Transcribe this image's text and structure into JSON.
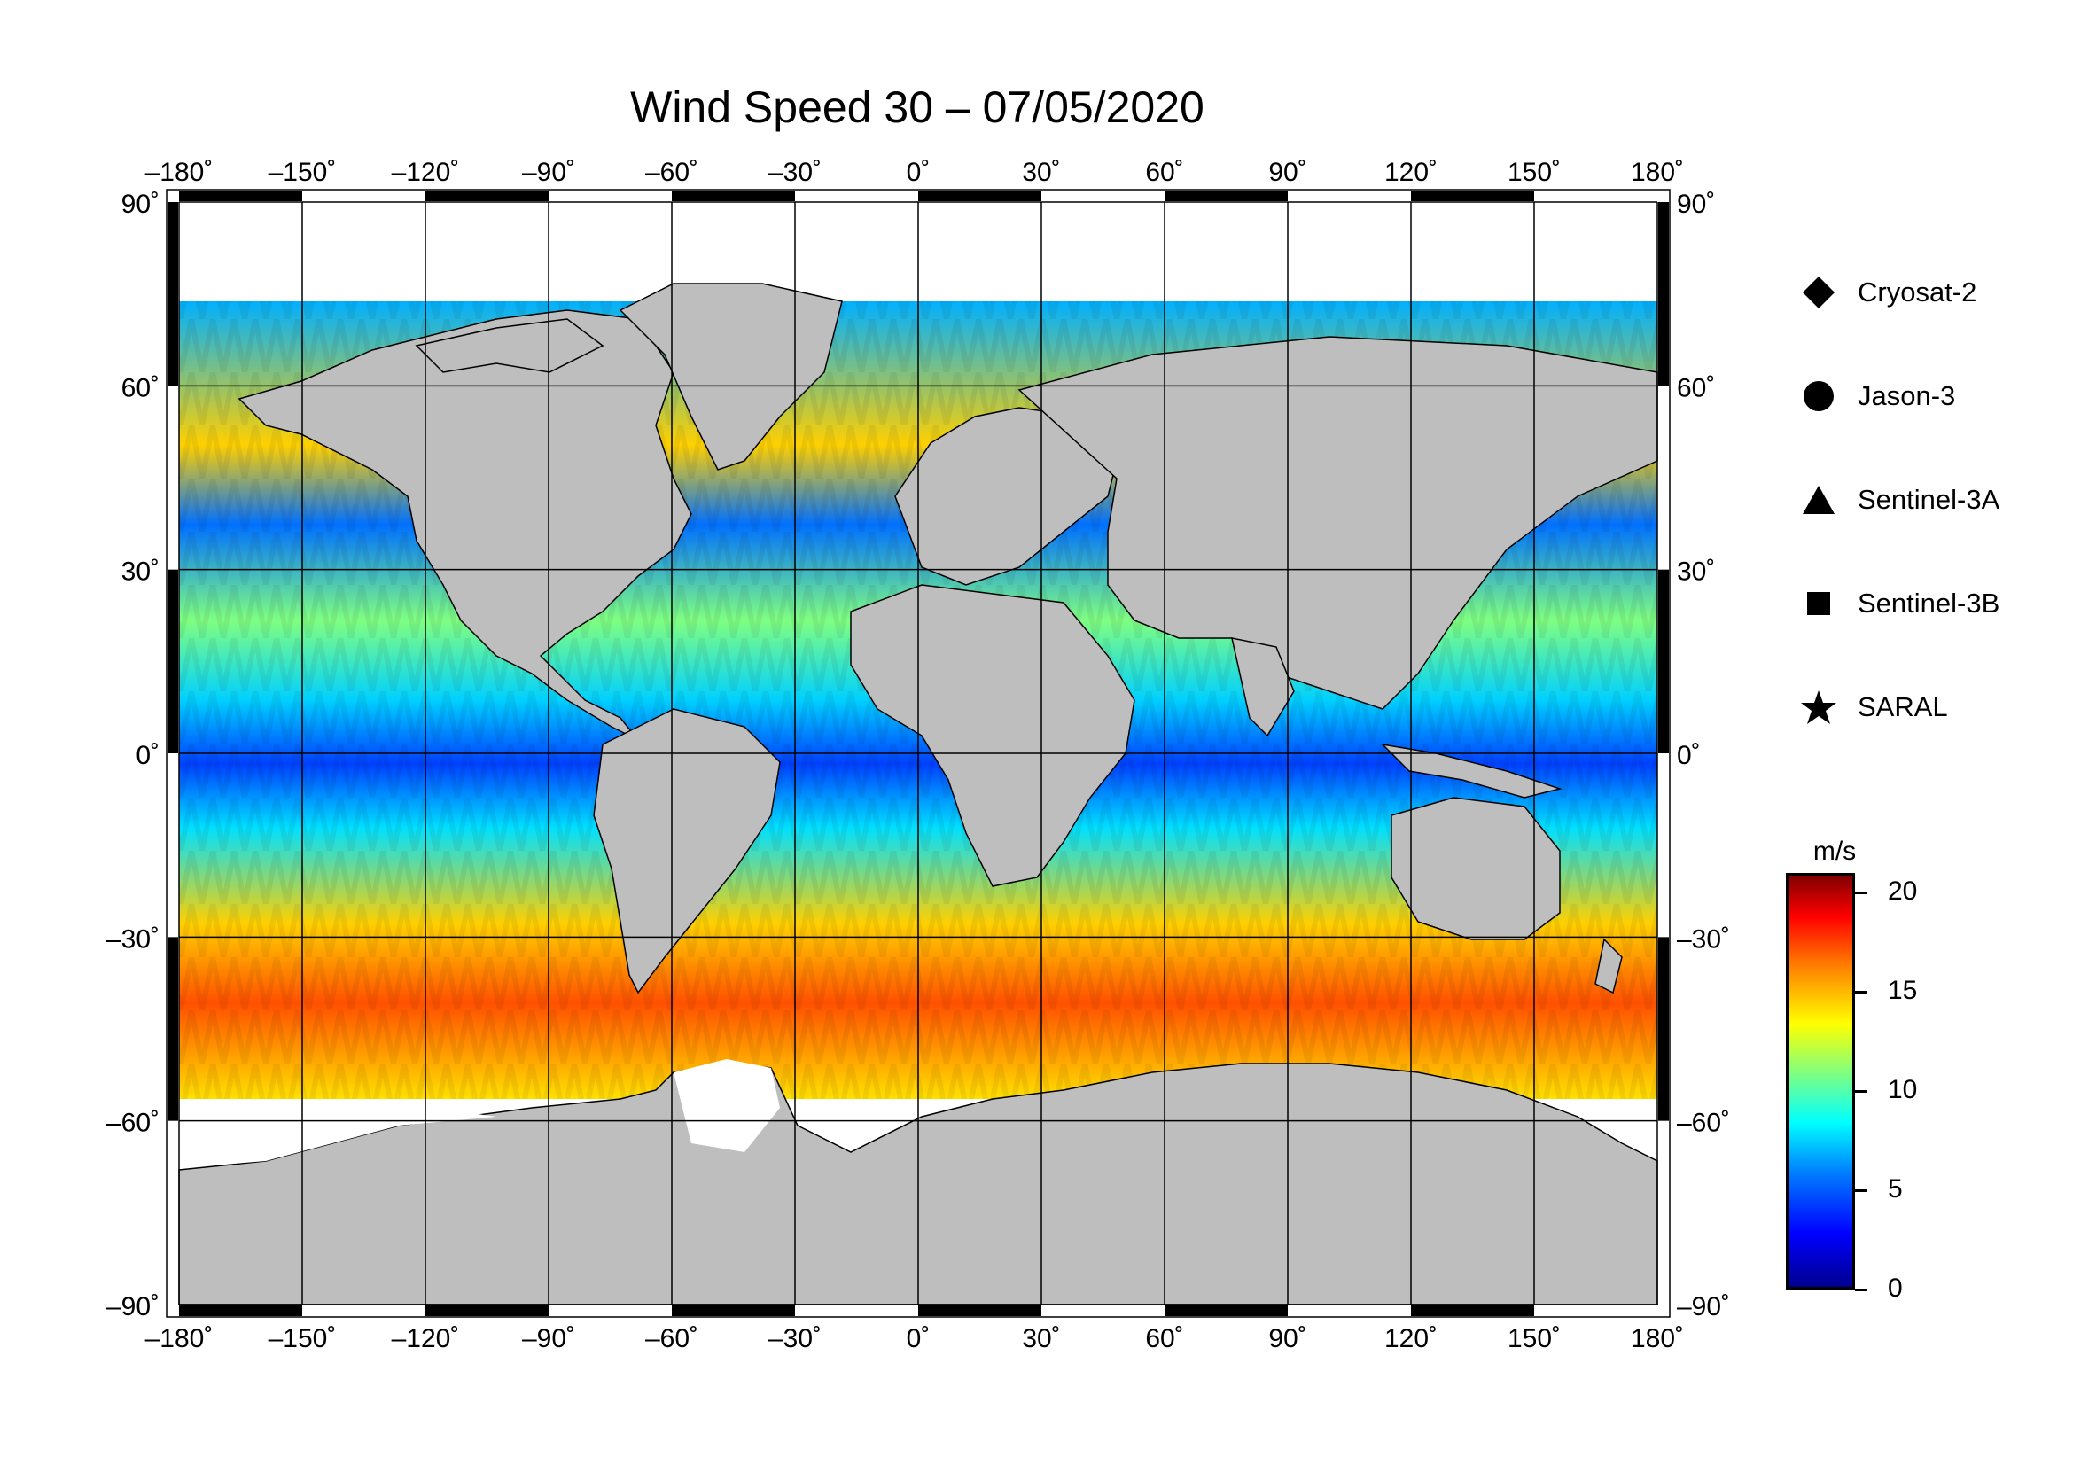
{
  "title": "Wind Speed 30 – 07/05/2020",
  "lon_ticks": [
    "–180˚",
    "–150˚",
    "–120˚",
    "–90˚",
    "–60˚",
    "–30˚",
    "0˚",
    "30˚",
    "60˚",
    "90˚",
    "120˚",
    "150˚",
    "180˚"
  ],
  "lat_ticks": [
    "90˚",
    "60˚",
    "30˚",
    "0˚",
    "–30˚",
    "–60˚",
    "–90˚"
  ],
  "legend": [
    {
      "shape": "diamond",
      "label": "Cryosat-2"
    },
    {
      "shape": "circle",
      "label": "Jason-3"
    },
    {
      "shape": "triangle",
      "label": "Sentinel-3A"
    },
    {
      "shape": "square",
      "label": "Sentinel-3B"
    },
    {
      "shape": "star",
      "label": "SARAL"
    }
  ],
  "colorbar": {
    "unit": "m/s",
    "ticks": [
      "20",
      "15",
      "10",
      "5",
      "0"
    ],
    "range": [
      0,
      21
    ],
    "colormap": "jet"
  },
  "colors": {
    "land": "#bebebe",
    "ice_no_data": "#ffffff",
    "ocean_low": "#0000ff",
    "ocean_mid": "#00ffff",
    "ocean_high": "#ff0000"
  }
}
